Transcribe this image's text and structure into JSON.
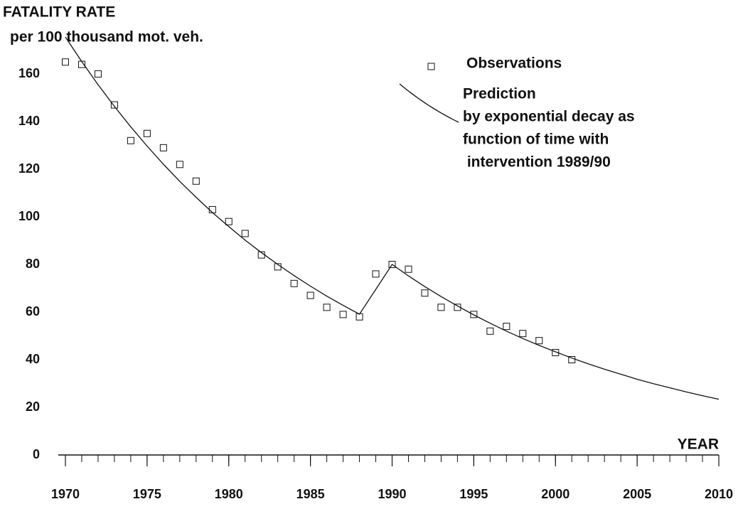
{
  "chart_data": {
    "type": "scatter_line",
    "title": "FATALITY RATE",
    "y_label": "per 100 thousand mot. veh.",
    "x_label": "YEAR",
    "xlim": [
      1970,
      2010
    ],
    "ylim": [
      0,
      160
    ],
    "xticks": [
      1970,
      1975,
      1980,
      1985,
      1990,
      1995,
      2000,
      2005,
      2010
    ],
    "xticks_minor": [
      1970,
      1971,
      1972,
      1973,
      1974,
      1975,
      1976,
      1977,
      1978,
      1979,
      1980,
      1981,
      1982,
      1983,
      1984,
      1985,
      1986,
      1987,
      1988,
      1989,
      1990,
      1991,
      1992,
      1993,
      1994,
      1995,
      1996,
      1997,
      1998,
      1999,
      2000,
      2001,
      2002,
      2003,
      2004,
      2005,
      2006,
      2007,
      2008,
      2009,
      2010
    ],
    "yticks": [
      0,
      20,
      40,
      60,
      80,
      100,
      120,
      140,
      160
    ],
    "series": [
      {
        "name": "Observations",
        "color": "#111111",
        "marker": "square",
        "x": [
          1970,
          1971,
          1972,
          1973,
          1974,
          1975,
          1976,
          1977,
          1978,
          1979,
          1980,
          1981,
          1982,
          1983,
          1984,
          1985,
          1986,
          1987,
          1988,
          1989,
          1990,
          1991,
          1992,
          1993,
          1994,
          1995,
          1996,
          1997,
          1998,
          1999,
          2000,
          2001
        ],
        "values": [
          165,
          164,
          160,
          147,
          132,
          135,
          129,
          122,
          115,
          103,
          98,
          93,
          84,
          79,
          72,
          67,
          62,
          59,
          58,
          76,
          80,
          78,
          68,
          62,
          62,
          59,
          52,
          54,
          51,
          48,
          43,
          40
        ]
      },
      {
        "name": "Prediction",
        "color": "#111111",
        "marker": "line",
        "description": [
          "by exponential decay as",
          "function of time with",
          " intervention 1989/90"
        ],
        "x": [
          1970,
          1971,
          1972,
          1973,
          1974,
          1975,
          1976,
          1977,
          1978,
          1979,
          1980,
          1981,
          1982,
          1983,
          1984,
          1985,
          1986,
          1987,
          1988,
          1990,
          1991,
          1992,
          1993,
          1994,
          1995,
          1996,
          1997,
          1998,
          1999,
          2000,
          2001,
          2002,
          2003,
          2004,
          2005,
          2006,
          2007,
          2008,
          2009,
          2010
        ],
        "values": [
          175.5,
          165.2,
          155.5,
          146.4,
          137.8,
          129.7,
          122.1,
          114.9,
          108.2,
          101.8,
          95.9,
          90.2,
          85.0,
          80.0,
          75.3,
          70.9,
          66.7,
          62.8,
          59.1,
          80.0,
          75.2,
          70.7,
          66.5,
          62.6,
          58.8,
          55.3,
          52.0,
          48.9,
          46.0,
          43.3,
          40.7,
          38.3,
          36.0,
          33.9,
          31.8,
          29.9,
          28.2,
          26.5,
          24.9,
          23.4
        ]
      }
    ]
  }
}
